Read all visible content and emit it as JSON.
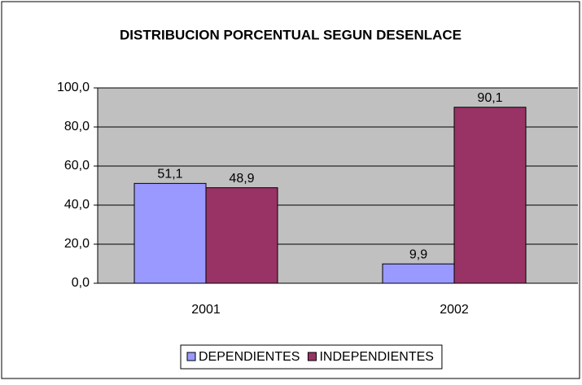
{
  "chart_data": {
    "type": "bar",
    "title": "DISTRIBUCION PORCENTUAL SEGUN DESENLACE",
    "categories": [
      "2001",
      "2002"
    ],
    "series": [
      {
        "name": "DEPENDIENTES",
        "color": "#9999ff",
        "values": [
          51.1,
          9.9
        ],
        "value_labels": [
          "51,1",
          "9,9"
        ]
      },
      {
        "name": "INDEPENDIENTES",
        "color": "#993366",
        "values": [
          48.9,
          90.1
        ],
        "value_labels": [
          "48,9",
          "90,1"
        ]
      }
    ],
    "ylim": [
      0,
      100
    ],
    "yticks": [
      {
        "value": 0,
        "label": "0,0"
      },
      {
        "value": 20,
        "label": "20,0"
      },
      {
        "value": 40,
        "label": "40,0"
      },
      {
        "value": 60,
        "label": "60,0"
      },
      {
        "value": 80,
        "label": "80,0"
      },
      {
        "value": 100,
        "label": "100,0"
      }
    ],
    "grid": true,
    "legend": "bottom"
  }
}
